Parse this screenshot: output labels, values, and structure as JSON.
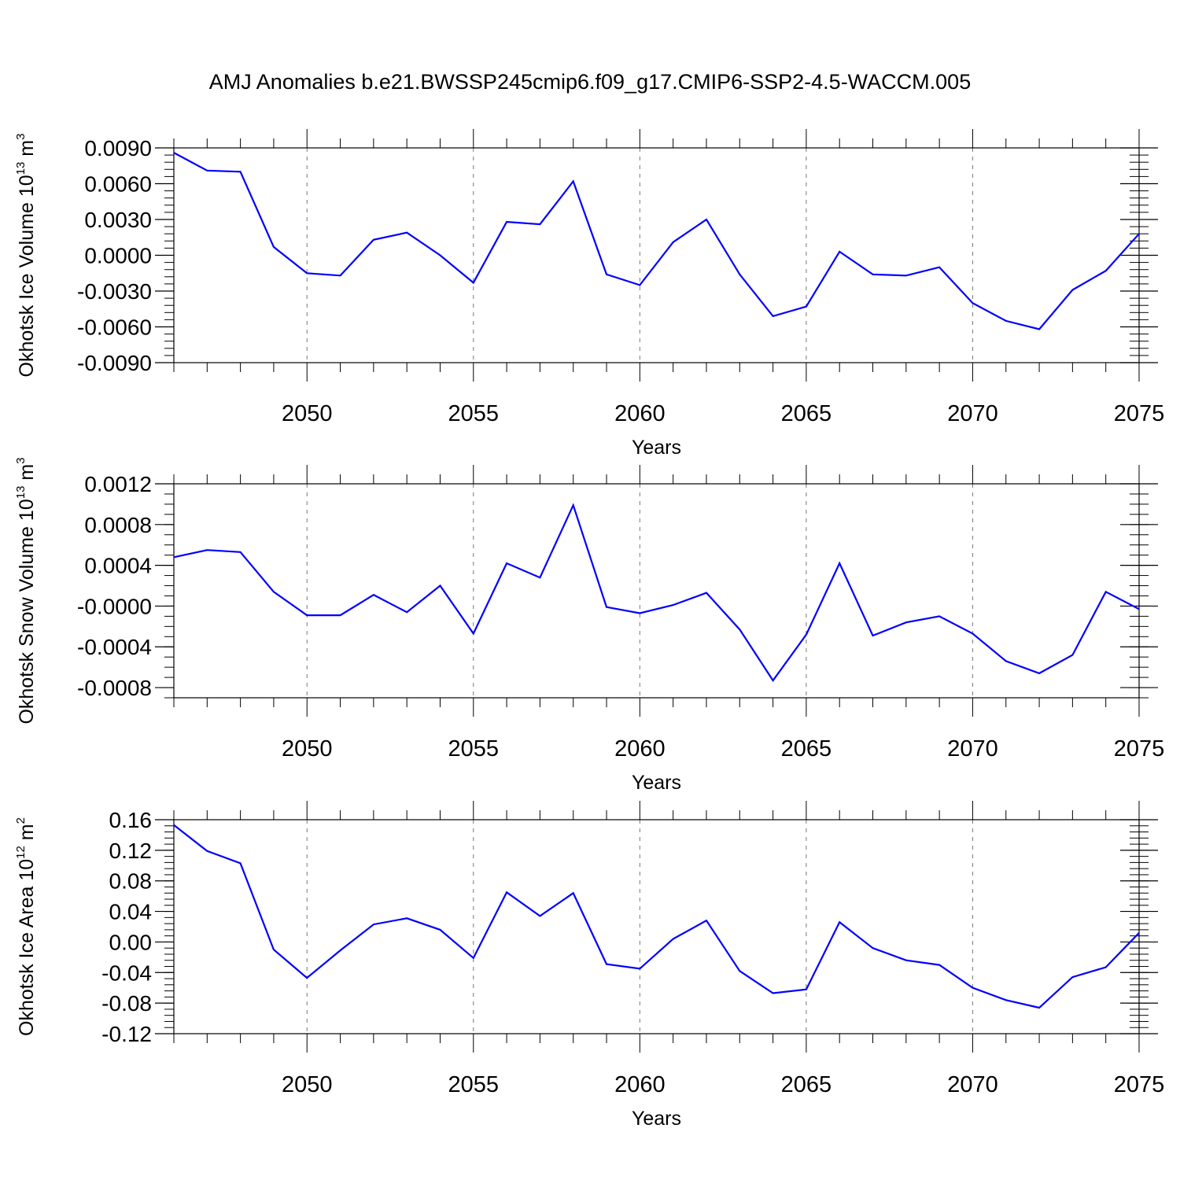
{
  "title": "AMJ Anomalies b.e21.BWSSP245cmip6.f09_g17.CMIP6-SSP2-4.5-WACCM.005",
  "line_color": "#0000ff",
  "chart_data": [
    {
      "type": "line",
      "ylabel": {
        "prefix": "Okhotsk Ice Volume 10",
        "exp": "13",
        "unit": " m",
        "unit_exp": "3"
      },
      "xlabel": "Years",
      "xlim": [
        2046,
        2075
      ],
      "ylim": [
        -0.009,
        0.009
      ],
      "xticks": [
        2050,
        2055,
        2060,
        2065,
        2070,
        2075
      ],
      "yticks": [
        -0.009,
        -0.006,
        -0.003,
        0.0,
        0.003,
        0.006,
        0.009
      ],
      "ytick_labels": [
        "-0.0090",
        "-0.0060",
        "-0.0030",
        "0.0000",
        "0.0030",
        "0.0060",
        "0.0090"
      ],
      "minor_step": 0.0006,
      "grid": "vertical dashed at major x ticks",
      "x": [
        2046,
        2047,
        2048,
        2049,
        2050,
        2051,
        2052,
        2053,
        2054,
        2055,
        2056,
        2057,
        2058,
        2059,
        2060,
        2061,
        2062,
        2063,
        2064,
        2065,
        2066,
        2067,
        2068,
        2069,
        2070,
        2071,
        2072,
        2073,
        2074,
        2075
      ],
      "series": [
        {
          "values": [
            0.0086,
            0.0071,
            0.007,
            0.0007,
            -0.0015,
            -0.0017,
            0.0013,
            0.0019,
            0.0,
            -0.0023,
            0.0028,
            0.0026,
            0.0062,
            -0.0016,
            -0.0025,
            0.0011,
            0.003,
            -0.0016,
            -0.0051,
            -0.0043,
            0.0003,
            -0.0016,
            -0.0017,
            -0.001,
            -0.004,
            -0.0055,
            -0.0062,
            -0.0029,
            -0.0013,
            0.0018
          ]
        }
      ]
    },
    {
      "type": "line",
      "ylabel": {
        "prefix": "Okhotsk Snow Volume 10",
        "exp": "13",
        "unit": " m",
        "unit_exp": "3"
      },
      "xlabel": "Years",
      "xlim": [
        2046,
        2075
      ],
      "ylim": [
        -0.0009,
        0.0012
      ],
      "xticks": [
        2050,
        2055,
        2060,
        2065,
        2070,
        2075
      ],
      "yticks": [
        -0.0008,
        -0.0004,
        0.0,
        0.0004,
        0.0008,
        0.0012
      ],
      "ytick_labels": [
        "-0.0008",
        "-0.0004",
        "-0.0000",
        "0.0004",
        "0.0008",
        "0.0012"
      ],
      "minor_step": 0.0001,
      "grid": "vertical dashed at major x ticks",
      "x": [
        2046,
        2047,
        2048,
        2049,
        2050,
        2051,
        2052,
        2053,
        2054,
        2055,
        2056,
        2057,
        2058,
        2059,
        2060,
        2061,
        2062,
        2063,
        2064,
        2065,
        2066,
        2067,
        2068,
        2069,
        2070,
        2071,
        2072,
        2073,
        2074,
        2075
      ],
      "series": [
        {
          "values": [
            0.00048,
            0.00055,
            0.00053,
            0.00014,
            -9e-05,
            -9e-05,
            0.00011,
            -6e-05,
            0.0002,
            -0.00027,
            0.00042,
            0.00028,
            0.00099,
            -1e-05,
            -7e-05,
            1e-05,
            0.00013,
            -0.00023,
            -0.00073,
            -0.00028,
            0.00042,
            -0.00029,
            -0.00016,
            -0.0001,
            -0.00027,
            -0.00054,
            -0.00066,
            -0.00048,
            0.00014,
            -3e-05
          ]
        }
      ]
    },
    {
      "type": "line",
      "ylabel": {
        "prefix": "Okhotsk Ice Area 10",
        "exp": "12",
        "unit": " m",
        "unit_exp": "2"
      },
      "xlabel": "Years",
      "xlim": [
        2046,
        2075
      ],
      "ylim": [
        -0.12,
        0.16
      ],
      "xticks": [
        2050,
        2055,
        2060,
        2065,
        2070,
        2075
      ],
      "yticks": [
        -0.12,
        -0.08,
        -0.04,
        0.0,
        0.04,
        0.08,
        0.12,
        0.16
      ],
      "ytick_labels": [
        "-0.12",
        "-0.08",
        "-0.04",
        "0.00",
        "0.04",
        "0.08",
        "0.12",
        "0.16"
      ],
      "minor_step": 0.008,
      "grid": "vertical dashed at major x ticks",
      "x": [
        2046,
        2047,
        2048,
        2049,
        2050,
        2051,
        2052,
        2053,
        2054,
        2055,
        2056,
        2057,
        2058,
        2059,
        2060,
        2061,
        2062,
        2063,
        2064,
        2065,
        2066,
        2067,
        2068,
        2069,
        2070,
        2071,
        2072,
        2073,
        2074,
        2075
      ],
      "series": [
        {
          "values": [
            0.153,
            0.119,
            0.103,
            -0.01,
            -0.047,
            -0.011,
            0.023,
            0.031,
            0.016,
            -0.021,
            0.065,
            0.034,
            0.064,
            -0.029,
            -0.035,
            0.004,
            0.028,
            -0.038,
            -0.067,
            -0.062,
            0.026,
            -0.008,
            -0.024,
            -0.03,
            -0.06,
            -0.076,
            -0.086,
            -0.046,
            -0.033,
            0.012
          ]
        }
      ]
    }
  ]
}
